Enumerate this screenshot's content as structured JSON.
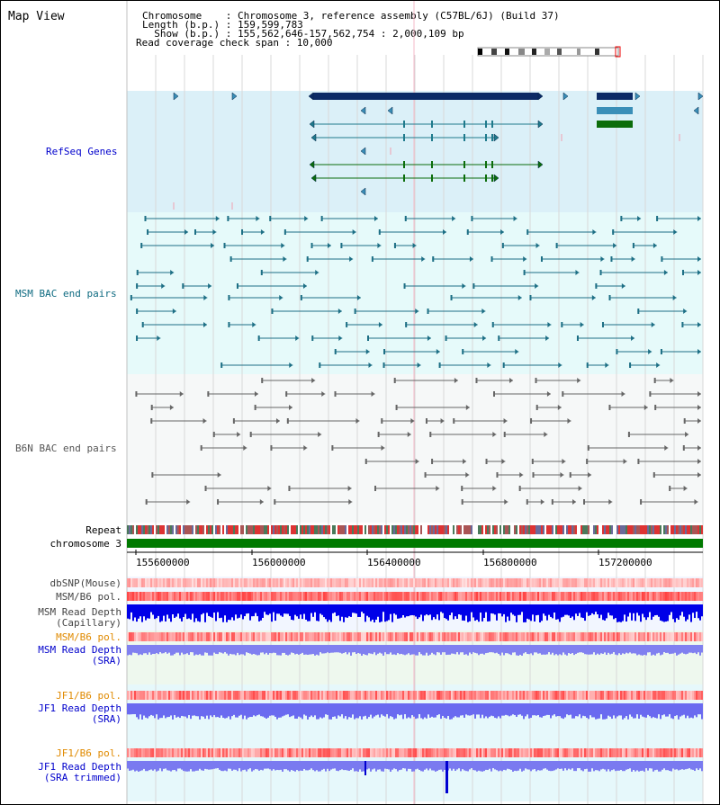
{
  "title": "Map View",
  "header": {
    "line1": "Chromosome    : Chromosome 3, reference assembly (C57BL/6J) (Build 37)",
    "line2": "Length (b.p.) : 159,599,783",
    "line3": "  Show (b.p.) : 155,562,646-157,562,754 : 2,000,109 bp",
    "line4": "Read coverage check span : 10,000"
  },
  "tracks": {
    "refseq": "RefSeq Genes",
    "msm_bac": "MSM BAC end pairs",
    "b6n_bac": "B6N BAC end pairs",
    "repeat": "Repeat",
    "chromosome": "chromosome 3",
    "dbsnp": "dbSNP(Mouse)",
    "msm_b6_pol": "MSM/B6 pol.",
    "msm_depth_cap_1": "MSM Read Depth",
    "msm_depth_cap_2": "(Capillary)",
    "msm_b6_pol2": "MSM/B6 pol.",
    "msm_depth_sra_1": "MSM Read Depth",
    "msm_depth_sra_2": "(SRA)",
    "jf1_pol": "JF1/B6 pol.",
    "jf1_depth_1": "JF1 Read Depth",
    "jf1_depth_2": "(SRA)",
    "jf1_pol2": "JF1/B6 pol.",
    "jf1_trim_1": "JF1 Read Depth",
    "jf1_trim_2": "(SRA trimmed)"
  },
  "axis": {
    "ticks": [
      "155600000",
      "156000000",
      "156400000",
      "156800000",
      "157200000"
    ]
  },
  "colors": {
    "refseq_bg": "#dbf0f8",
    "msm_bg": "#e6fafa",
    "b6n_bg": "#f6f8f8",
    "navy_gene": "#0b2a66",
    "teal": "#1f7a8c",
    "green_gene": "#0b6d0b",
    "chromosome_bar": "#007a00",
    "polymorphism_red": "#ff3030",
    "depth_blue": "#0000ff",
    "label_blue": "#0000cc",
    "label_orange": "#e08a00"
  }
}
